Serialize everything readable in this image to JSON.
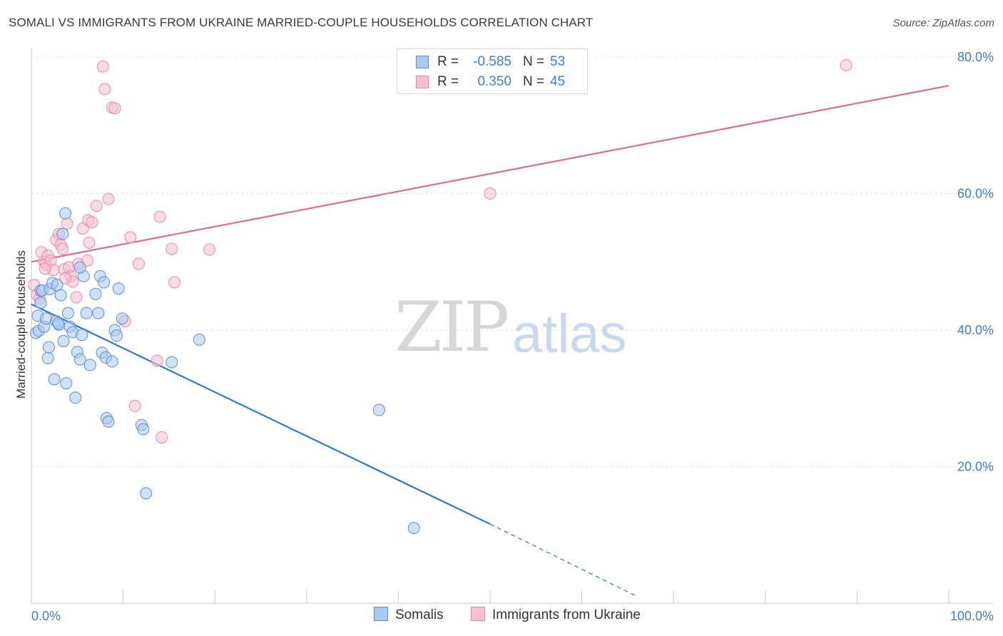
{
  "header": {
    "title": "SOMALI VS IMMIGRANTS FROM UKRAINE MARRIED-COUPLE HOUSEHOLDS CORRELATION CHART",
    "source": "Source: ZipAtlas.com"
  },
  "watermark": {
    "zip": "ZIP",
    "atlas": "atlas"
  },
  "legend": {
    "r_label": "R =",
    "n_label": "N =",
    "rows": [
      {
        "r": "-0.585",
        "n": "53"
      },
      {
        "r": "0.350",
        "n": "45"
      }
    ]
  },
  "colors": {
    "somali_fill": "#a9c9f3",
    "somali_stroke": "#5a8fd6",
    "somali_line": "#2f76d2",
    "ukraine_fill": "#f7bfd0",
    "ukraine_stroke": "#e88aa8",
    "ukraine_line": "#e06b93"
  },
  "chart_data": {
    "type": "scatter",
    "title": "SOMALI VS IMMIGRANTS FROM UKRAINE MARRIED-COUPLE HOUSEHOLDS CORRELATION CHART",
    "xlabel": "",
    "ylabel": "Married-couple Households",
    "xlim": [
      0,
      100
    ],
    "ylim": [
      0,
      80
    ],
    "x_tick_labels": [
      "0.0%",
      "100.0%"
    ],
    "y_ticks": [
      20,
      40,
      60,
      80
    ],
    "y_tick_labels": [
      "20.0%",
      "40.0%",
      "60.0%",
      "80.0%"
    ],
    "grid": true,
    "series": [
      {
        "name": "Somalis",
        "r": -0.585,
        "n": 53,
        "trend": {
          "x0": 0,
          "y0": 43.8,
          "x1": 50,
          "y1": 11.6,
          "dashed_to_x": 66,
          "dashed_to_y": 1.0
        },
        "points": [
          [
            0.5,
            39.6
          ],
          [
            0.7,
            42.1
          ],
          [
            0.8,
            39.9
          ],
          [
            1.0,
            45.8
          ],
          [
            1.2,
            45.8
          ],
          [
            1.4,
            40.5
          ],
          [
            1.6,
            41.7
          ],
          [
            1.8,
            35.9
          ],
          [
            1.9,
            37.5
          ],
          [
            2.0,
            46.0
          ],
          [
            2.3,
            46.9
          ],
          [
            2.5,
            32.8
          ],
          [
            2.7,
            41.3
          ],
          [
            2.8,
            46.6
          ],
          [
            3.0,
            40.8
          ],
          [
            3.2,
            45.1
          ],
          [
            3.4,
            54.1
          ],
          [
            3.5,
            38.4
          ],
          [
            3.7,
            57.1
          ],
          [
            3.8,
            32.2
          ],
          [
            4.0,
            42.5
          ],
          [
            4.2,
            40.5
          ],
          [
            4.5,
            39.7
          ],
          [
            4.8,
            30.1
          ],
          [
            5.0,
            36.8
          ],
          [
            5.3,
            35.7
          ],
          [
            5.5,
            39.3
          ],
          [
            5.7,
            47.9
          ],
          [
            6.0,
            42.5
          ],
          [
            6.4,
            34.9
          ],
          [
            7.0,
            45.3
          ],
          [
            7.3,
            42.5
          ],
          [
            7.5,
            47.9
          ],
          [
            7.7,
            36.7
          ],
          [
            7.9,
            47.0
          ],
          [
            8.1,
            36.0
          ],
          [
            8.2,
            27.1
          ],
          [
            8.4,
            26.6
          ],
          [
            8.8,
            35.4
          ],
          [
            9.1,
            40.0
          ],
          [
            9.3,
            39.2
          ],
          [
            9.5,
            46.1
          ],
          [
            9.9,
            41.7
          ],
          [
            12.0,
            26.1
          ],
          [
            12.2,
            25.5
          ],
          [
            12.5,
            16.1
          ],
          [
            15.3,
            35.3
          ],
          [
            18.3,
            38.6
          ],
          [
            37.9,
            28.3
          ],
          [
            41.7,
            11.0
          ],
          [
            5.3,
            49.2
          ],
          [
            1.0,
            44.0
          ],
          [
            2.9,
            41.0
          ]
        ]
      },
      {
        "name": "Immigrants from Ukraine",
        "r": 0.35,
        "n": 45,
        "trend": {
          "x0": 0,
          "y0": 50.0,
          "x1": 100,
          "y1": 75.8
        },
        "points": [
          [
            0.3,
            46.6
          ],
          [
            0.6,
            45.2
          ],
          [
            0.9,
            44.6
          ],
          [
            1.1,
            51.4
          ],
          [
            1.4,
            50.0
          ],
          [
            1.6,
            49.6
          ],
          [
            1.8,
            50.9
          ],
          [
            2.1,
            50.2
          ],
          [
            2.4,
            48.8
          ],
          [
            2.7,
            53.2
          ],
          [
            3.0,
            54.1
          ],
          [
            3.2,
            52.5
          ],
          [
            3.4,
            51.9
          ],
          [
            3.6,
            48.9
          ],
          [
            3.9,
            55.6
          ],
          [
            4.1,
            49.2
          ],
          [
            4.3,
            47.9
          ],
          [
            4.5,
            47.1
          ],
          [
            4.9,
            44.8
          ],
          [
            5.1,
            49.7
          ],
          [
            5.6,
            54.9
          ],
          [
            6.1,
            50.2
          ],
          [
            6.2,
            56.1
          ],
          [
            6.3,
            52.8
          ],
          [
            6.6,
            55.8
          ],
          [
            7.1,
            58.2
          ],
          [
            7.8,
            78.6
          ],
          [
            8.0,
            75.3
          ],
          [
            8.4,
            59.2
          ],
          [
            8.8,
            72.6
          ],
          [
            9.1,
            72.5
          ],
          [
            10.2,
            41.3
          ],
          [
            10.8,
            53.6
          ],
          [
            11.3,
            28.9
          ],
          [
            11.7,
            49.7
          ],
          [
            13.7,
            35.5
          ],
          [
            14.0,
            56.6
          ],
          [
            14.2,
            24.3
          ],
          [
            15.3,
            51.9
          ],
          [
            15.6,
            47.0
          ],
          [
            19.4,
            51.8
          ],
          [
            50.0,
            60.0
          ],
          [
            88.8,
            78.8
          ],
          [
            1.5,
            49.0
          ],
          [
            3.7,
            47.6
          ]
        ]
      }
    ]
  },
  "bottom_legend": [
    "Somalis",
    "Immigrants from Ukraine"
  ]
}
